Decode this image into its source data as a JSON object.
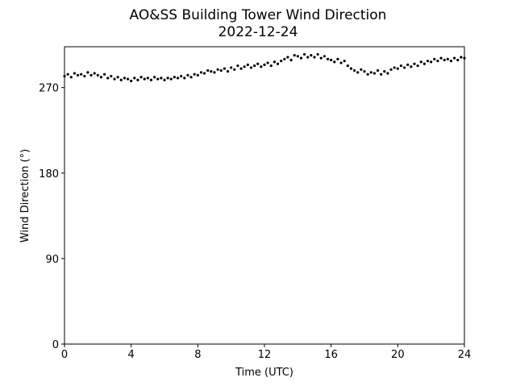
{
  "chart_data": {
    "type": "scatter",
    "title": "AO&SS Building Tower Wind Direction",
    "subtitle": "2022-12-24",
    "x_label": "Time (UTC)",
    "y_label": "Wind Direction (°)",
    "xlim": [
      0,
      24
    ],
    "xticks": [
      0,
      4,
      8,
      12,
      16,
      20,
      24
    ],
    "ylim": [
      0,
      313
    ],
    "yticks": [
      0,
      90,
      180,
      270
    ],
    "color": "#000000",
    "x": [
      0,
      0.2,
      0.4,
      0.6,
      0.8,
      1,
      1.2,
      1.4,
      1.6,
      1.8,
      2,
      2.2,
      2.4,
      2.6,
      2.8,
      3,
      3.2,
      3.4,
      3.6,
      3.8,
      4,
      4.2,
      4.4,
      4.6,
      4.8,
      5,
      5.2,
      5.4,
      5.6,
      5.8,
      6,
      6.2,
      6.4,
      6.6,
      6.8,
      7,
      7.2,
      7.4,
      7.6,
      7.8,
      8,
      8.2,
      8.4,
      8.6,
      8.8,
      9,
      9.2,
      9.4,
      9.6,
      9.8,
      10,
      10.2,
      10.4,
      10.6,
      10.8,
      11,
      11.2,
      11.4,
      11.6,
      11.8,
      12,
      12.2,
      12.4,
      12.6,
      12.8,
      13,
      13.2,
      13.4,
      13.6,
      13.8,
      14,
      14.2,
      14.4,
      14.6,
      14.8,
      15,
      15.2,
      15.4,
      15.6,
      15.8,
      16,
      16.2,
      16.4,
      16.6,
      16.8,
      17,
      17.2,
      17.4,
      17.6,
      17.8,
      18,
      18.2,
      18.4,
      18.6,
      18.8,
      19,
      19.2,
      19.4,
      19.6,
      19.8,
      20,
      20.2,
      20.4,
      20.6,
      20.8,
      21,
      21.2,
      21.4,
      21.6,
      21.8,
      22,
      22.2,
      22.4,
      22.6,
      22.8,
      23,
      23.2,
      23.4,
      23.6,
      23.8,
      24
    ],
    "values": [
      282,
      284,
      281,
      285,
      283,
      284,
      282,
      286,
      283,
      285,
      283,
      281,
      284,
      280,
      282,
      279,
      281,
      278,
      280,
      279,
      277,
      280,
      278,
      281,
      279,
      280,
      278,
      281,
      279,
      280,
      278,
      280,
      279,
      281,
      280,
      282,
      280,
      283,
      281,
      284,
      283,
      286,
      285,
      288,
      287,
      286,
      289,
      288,
      290,
      287,
      291,
      289,
      293,
      290,
      292,
      294,
      291,
      293,
      295,
      292,
      294,
      296,
      293,
      297,
      295,
      298,
      300,
      302,
      299,
      304,
      303,
      301,
      305,
      302,
      304,
      302,
      305,
      301,
      303,
      300,
      299,
      297,
      300,
      296,
      298,
      293,
      290,
      288,
      286,
      289,
      287,
      284,
      286,
      285,
      288,
      284,
      287,
      285,
      289,
      291,
      290,
      293,
      291,
      294,
      292,
      295,
      293,
      297,
      295,
      298,
      297,
      300,
      298,
      301,
      299,
      300,
      298,
      301,
      299,
      302,
      301
    ]
  }
}
